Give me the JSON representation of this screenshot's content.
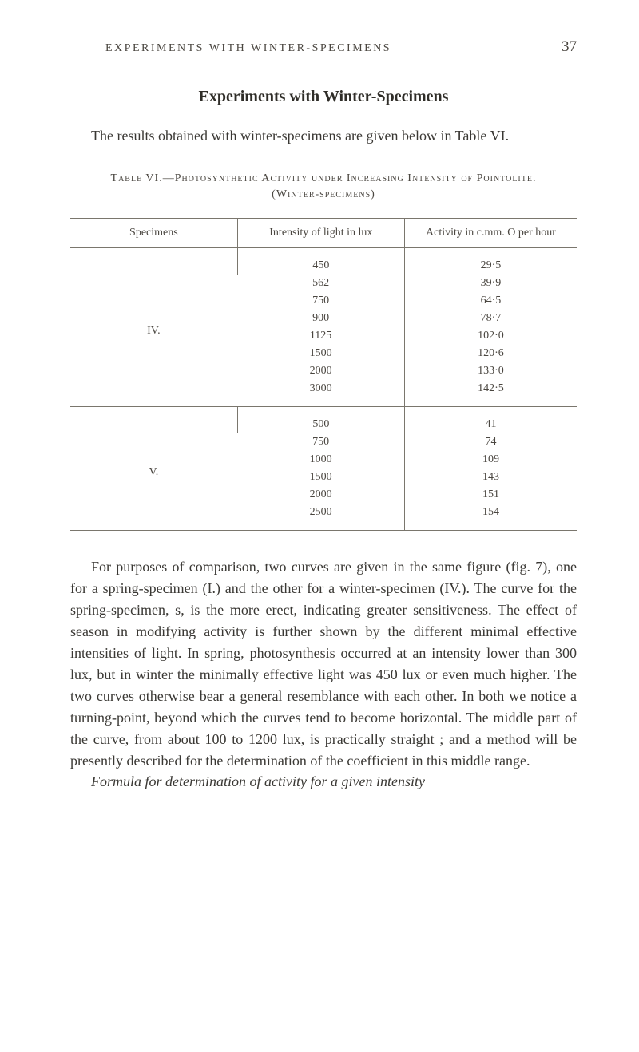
{
  "page": {
    "running_head": "EXPERIMENTS WITH WINTER-SPECIMENS",
    "page_number": "37"
  },
  "section_title": "Experiments with Winter-Specimens",
  "intro_para": "The results obtained with winter-specimens are given below in Table VI.",
  "table_caption": "Table VI.—Photosynthetic Activity under Increasing Intensity of Pointolite.  (Winter-specimens)",
  "table": {
    "columns": [
      "Specimens",
      "Intensity of light in lux",
      "Activity in c.mm. O per hour"
    ],
    "groups": [
      {
        "specimen": "IV.",
        "rows": [
          [
            "450",
            "29·5"
          ],
          [
            "562",
            "39·9"
          ],
          [
            "750",
            "64·5"
          ],
          [
            "900",
            "78·7"
          ],
          [
            "1125",
            "102·0"
          ],
          [
            "1500",
            "120·6"
          ],
          [
            "2000",
            "133·0"
          ],
          [
            "3000",
            "142·5"
          ]
        ]
      },
      {
        "specimen": "V.",
        "rows": [
          [
            "500",
            "41"
          ],
          [
            "750",
            "74"
          ],
          [
            "1000",
            "109"
          ],
          [
            "1500",
            "143"
          ],
          [
            "2000",
            "151"
          ],
          [
            "2500",
            "154"
          ]
        ]
      }
    ]
  },
  "main_para": "For purposes of comparison, two curves are given in the same figure (fig. 7), one for a spring-specimen (I.) and the other for a winter-specimen (IV.).  The curve for the spring-specimen, s, is the more erect, indicating greater sensitiveness.  The effect of season in modifying activity is further shown by the different minimal effective intensities of light.  In spring, photosynthesis occurred at an intensity lower than 300 lux, but in winter the minimally effective light was 450 lux or even much higher.  The two curves otherwise bear a general resemblance with each other.  In both we notice a turning-point, beyond which the curves tend to become horizontal.  The middle part of the curve, from about 100 to 1200 lux, is practically straight ; and a method will be presently described for the determination of the coefficient in this middle range.",
  "italic_line": "Formula for determination of activity for a given intensity"
}
